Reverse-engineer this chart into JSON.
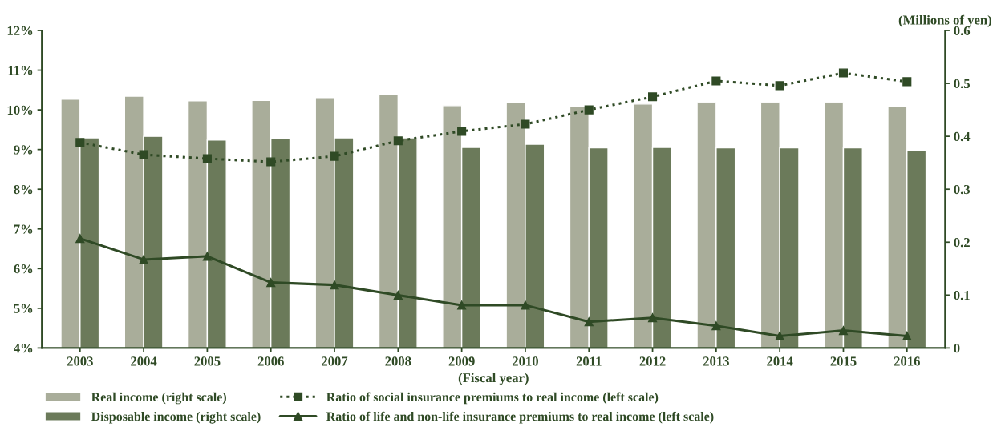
{
  "chart_data": {
    "type": "bar",
    "categories": [
      "2003",
      "2004",
      "2005",
      "2006",
      "2007",
      "2008",
      "2009",
      "2010",
      "2011",
      "2012",
      "2013",
      "2014",
      "2015",
      "2016"
    ],
    "series": [
      {
        "name": "Real income (right scale)",
        "axis": "y2",
        "color": "#a9ad9a",
        "values": [
          0.47,
          0.476,
          0.467,
          0.468,
          0.473,
          0.479,
          0.458,
          0.465,
          0.456,
          0.461,
          0.464,
          0.464,
          0.464,
          0.456
        ]
      },
      {
        "name": "Disposable income (right scale)",
        "axis": "y2",
        "color": "#6b7a5a",
        "values": [
          0.397,
          0.4,
          0.393,
          0.396,
          0.397,
          0.397,
          0.379,
          0.385,
          0.378,
          0.379,
          0.378,
          0.378,
          0.378,
          0.373
        ]
      },
      {
        "name": "Ratio of social insurance premiums to real income (left scale)",
        "type": "line",
        "color": "#2f4a25",
        "marker": "square",
        "line_style": "dotted",
        "values": [
          9.18,
          8.87,
          8.77,
          8.69,
          8.83,
          9.22,
          9.46,
          9.64,
          10.0,
          10.33,
          10.73,
          10.61,
          10.93,
          10.71
        ]
      },
      {
        "name": "Ratio of life and non-life insurance premiums to real income (left scale)",
        "type": "line",
        "color": "#2f4a25",
        "marker": "triangle",
        "line_style": "solid",
        "values": [
          6.76,
          6.23,
          6.31,
          5.65,
          5.59,
          5.33,
          5.08,
          5.08,
          4.66,
          4.76,
          4.56,
          4.3,
          4.44,
          4.3
        ]
      }
    ],
    "xlabel": "(Fiscal year)",
    "y2label": "(Millions of yen)",
    "ylim": [
      4,
      12
    ],
    "yticks": [
      {
        "value": 4,
        "label": "4%"
      },
      {
        "value": 5,
        "label": "5%"
      },
      {
        "value": 6,
        "label": "6%"
      },
      {
        "value": 7,
        "label": "7%"
      },
      {
        "value": 8,
        "label": "8%"
      },
      {
        "value": 9,
        "label": "9%"
      },
      {
        "value": 10,
        "label": "10%"
      },
      {
        "value": 11,
        "label": "11%"
      },
      {
        "value": 12,
        "label": "12%"
      }
    ],
    "y2lim": [
      0,
      0.6
    ],
    "y2ticks": [
      0,
      0.1,
      0.2,
      0.3,
      0.4,
      0.5,
      0.6
    ],
    "grid": false,
    "legend": "bottom"
  }
}
